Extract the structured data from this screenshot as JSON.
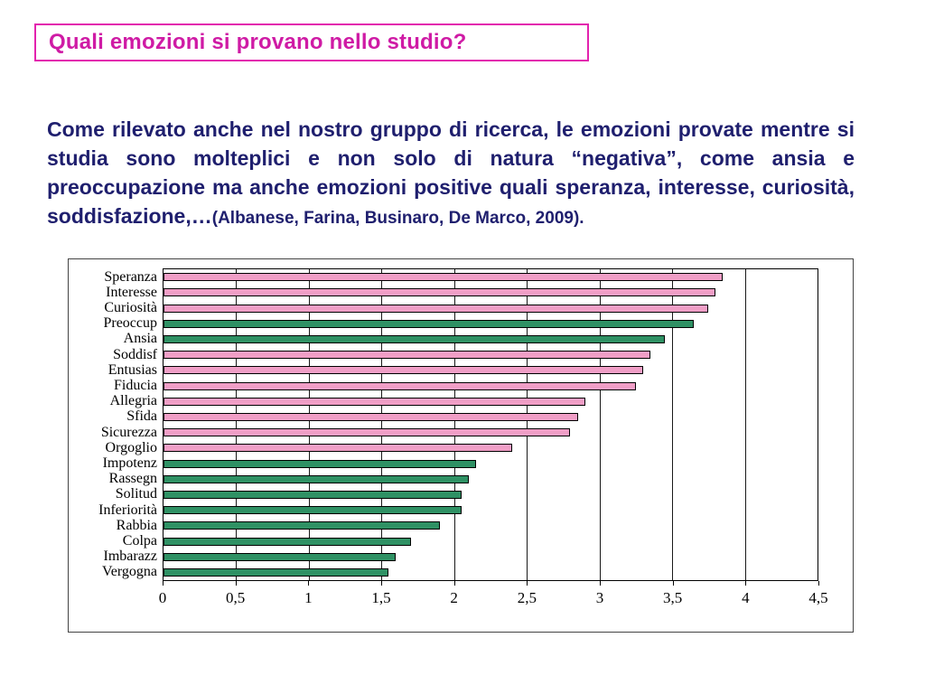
{
  "slide": {
    "title": "Quali emozioni si provano nello studio?",
    "paragraph_main": "Come rilevato anche nel nostro gruppo di ricerca, le emozioni provate mentre si studia sono molteplici e non solo di natura “negativa”, come ansia e preoccupazione ma anche emozioni positive quali speranza, interesse, curiosità, soddisfazione,…",
    "paragraph_citation": "(Albanese, Farina, Businaro, De Marco, 2009).",
    "colors": {
      "title": "#cf1ba5",
      "title_border": "#e322ae",
      "body_text": "#1f1f6e",
      "bar_pink": "#f09ec6",
      "bar_green": "#2f9164"
    }
  },
  "chart_data": {
    "type": "bar",
    "orientation": "horizontal",
    "title": "",
    "xlabel": "",
    "ylabel": "",
    "categories": [
      "Speranza",
      "Interesse",
      "Curiosità",
      "Preoccup",
      "Ansia",
      "Soddisf",
      "Entusias",
      "Fiducia",
      "Allegria",
      "Sfida",
      "Sicurezza",
      "Orgoglio",
      "Impotenz",
      "Rassegn",
      "Solitud",
      "Inferiorità",
      "Rabbia",
      "Colpa",
      "Imbarazz",
      "Vergogna"
    ],
    "values": [
      3.85,
      3.8,
      3.75,
      3.65,
      3.45,
      3.35,
      3.3,
      3.25,
      2.9,
      2.85,
      2.8,
      2.4,
      2.15,
      2.1,
      2.05,
      2.05,
      1.9,
      1.7,
      1.6,
      1.55
    ],
    "bar_colors": [
      "pink",
      "pink",
      "pink",
      "green",
      "green",
      "pink",
      "pink",
      "pink",
      "pink",
      "pink",
      "pink",
      "pink",
      "green",
      "green",
      "green",
      "green",
      "green",
      "green",
      "green",
      "green"
    ],
    "xticks": [
      "0",
      "0,5",
      "1",
      "1,5",
      "2",
      "2,5",
      "3",
      "3,5",
      "4",
      "4,5"
    ],
    "xtick_values": [
      0,
      0.5,
      1,
      1.5,
      2,
      2.5,
      3,
      3.5,
      4,
      4.5
    ],
    "xlim": [
      0,
      4.5
    ],
    "grid": true,
    "legend": false
  }
}
